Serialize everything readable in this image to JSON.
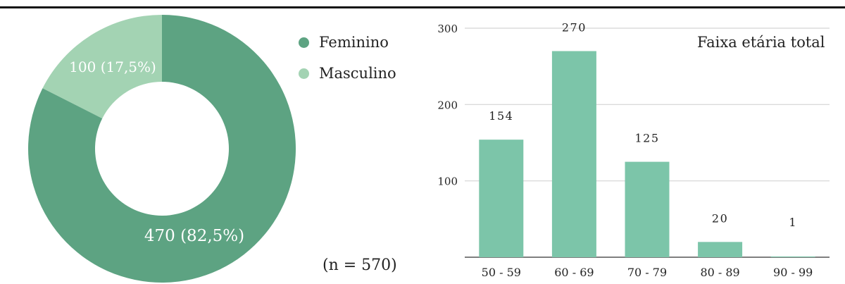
{
  "colors": {
    "feminino": "#5da382",
    "masculino": "#a3d3b3",
    "bars": "#7cc5a9",
    "grid": "#d4d4d4",
    "axis": "#555555"
  },
  "legend": [
    {
      "label": "Feminino",
      "color": "#5da382"
    },
    {
      "label": "Masculino",
      "color": "#a3d3b3"
    }
  ],
  "n_label": "(n = 570)",
  "chart_data": [
    {
      "type": "pie",
      "donut": true,
      "slices": [
        {
          "name": "Feminino",
          "value": 470,
          "label": "470 (82,5%)",
          "color": "#5da382"
        },
        {
          "name": "Masculino",
          "value": 100,
          "label": "100 (17,5%)",
          "color": "#a3d3b3"
        }
      ],
      "legend_position": "top-right"
    },
    {
      "type": "bar",
      "title": "Faixa etária total",
      "categories": [
        "50 - 59",
        "60 - 69",
        "70 - 79",
        "80 - 89",
        "90 - 99"
      ],
      "values": [
        154,
        270,
        125,
        20,
        1
      ],
      "data_labels": [
        "154",
        "270",
        "125",
        "20",
        "1"
      ],
      "yticks": [
        100,
        200,
        300
      ],
      "ylim": [
        0,
        300
      ],
      "grid": true
    }
  ]
}
